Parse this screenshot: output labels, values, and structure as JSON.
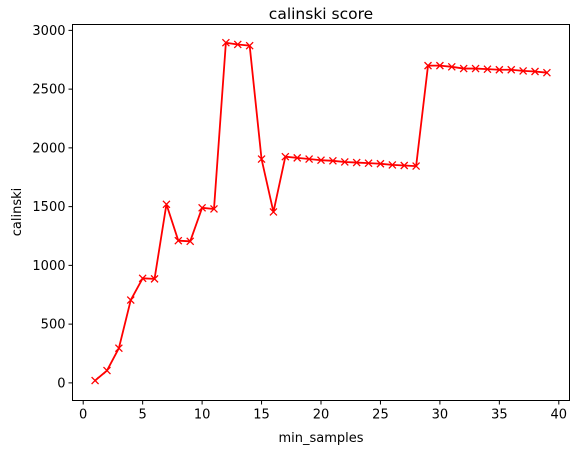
{
  "chart_data": {
    "type": "line",
    "title": "calinski score",
    "xlabel": "min_samples",
    "ylabel": "calinski",
    "xlim": [
      -0.9,
      40.9
    ],
    "ylim": [
      -150,
      3050
    ],
    "x_ticks": [
      0,
      5,
      10,
      15,
      20,
      25,
      30,
      35,
      40
    ],
    "y_ticks": [
      0,
      500,
      1000,
      1500,
      2000,
      2500,
      3000
    ],
    "grid": false,
    "legend": "none",
    "marker": "x",
    "color": "#ff0000",
    "series": [
      {
        "x": [
          1,
          2,
          3,
          4,
          5,
          6,
          7,
          8,
          9,
          10,
          11,
          12,
          13,
          14,
          15,
          16,
          17,
          18,
          19,
          20,
          21,
          22,
          23,
          24,
          25,
          26,
          27,
          28,
          29,
          30,
          31,
          32,
          33,
          34,
          35,
          36,
          37,
          38,
          39
        ],
        "values": [
          20,
          105,
          295,
          705,
          890,
          885,
          1520,
          1210,
          1205,
          1490,
          1480,
          2895,
          2880,
          2870,
          1905,
          1455,
          1925,
          1915,
          1905,
          1895,
          1890,
          1880,
          1875,
          1870,
          1865,
          1855,
          1850,
          1845,
          2700,
          2700,
          2690,
          2675,
          2675,
          2670,
          2665,
          2665,
          2655,
          2650,
          2640
        ]
      }
    ]
  }
}
